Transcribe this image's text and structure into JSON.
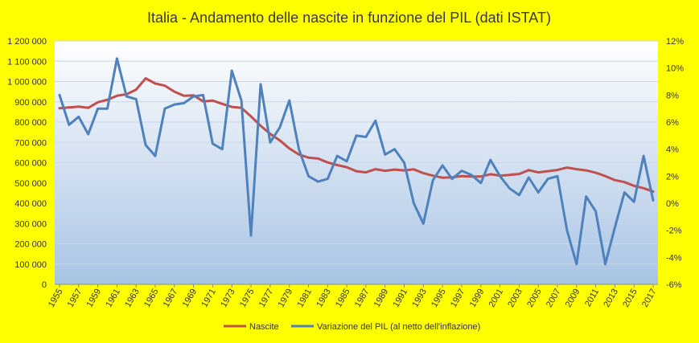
{
  "chart_data": {
    "type": "line",
    "title": "Italia - Andamento delle nascite in funzione del PIL (dati ISTAT)",
    "xlabel": "",
    "ylabel": "",
    "x": [
      1955,
      1956,
      1957,
      1958,
      1959,
      1960,
      1961,
      1962,
      1963,
      1964,
      1965,
      1966,
      1967,
      1968,
      1969,
      1970,
      1971,
      1972,
      1973,
      1974,
      1975,
      1976,
      1977,
      1978,
      1979,
      1980,
      1981,
      1982,
      1983,
      1984,
      1985,
      1986,
      1987,
      1988,
      1989,
      1990,
      1991,
      1992,
      1993,
      1994,
      1995,
      1996,
      1997,
      1998,
      1999,
      2000,
      2001,
      2002,
      2003,
      2004,
      2005,
      2006,
      2007,
      2008,
      2009,
      2010,
      2011,
      2012,
      2013,
      2014,
      2015,
      2016,
      2017
    ],
    "x_tick_labels": [
      "1955",
      "1957",
      "1959",
      "1961",
      "1963",
      "1965",
      "1967",
      "1969",
      "1971",
      "1973",
      "1975",
      "1977",
      "1979",
      "1981",
      "1983",
      "1985",
      "1987",
      "1989",
      "1991",
      "1993",
      "1995",
      "1997",
      "1999",
      "2001",
      "2003",
      "2005",
      "2007",
      "2009",
      "2011",
      "2013",
      "2015",
      "2017"
    ],
    "y_left": {
      "min": 0,
      "max": 1200000,
      "step": 100000,
      "tick_labels": [
        "0",
        "100 000",
        "200 000",
        "300 000",
        "400 000",
        "500 000",
        "600 000",
        "700 000",
        "800 000",
        "900 000",
        "1 000 000",
        "1 100 000",
        "1 200 000"
      ]
    },
    "y_right": {
      "min": -6,
      "max": 12,
      "step": 2,
      "tick_labels": [
        "-6%",
        "-4%",
        "-2%",
        "0%",
        "2%",
        "4%",
        "6%",
        "8%",
        "10%",
        "12%"
      ]
    },
    "grid": true,
    "legend_position": "bottom",
    "series": [
      {
        "name": "Nascite",
        "axis": "left",
        "color": "#c0504d",
        "values": [
          868000,
          872000,
          876000,
          870000,
          898000,
          910000,
          930000,
          937000,
          960000,
          1016000,
          990000,
          980000,
          950000,
          930000,
          932000,
          902000,
          906000,
          890000,
          875000,
          870000,
          828000,
          782000,
          742000,
          710000,
          670000,
          640000,
          625000,
          620000,
          601000,
          588000,
          578000,
          558000,
          552000,
          568000,
          560000,
          566000,
          562000,
          567000,
          548000,
          536000,
          526000,
          528000,
          534000,
          532000,
          532000,
          543000,
          536000,
          540000,
          544000,
          563000,
          552000,
          558000,
          564000,
          576000,
          568000,
          562000,
          550000,
          534000,
          514000,
          504000,
          486000,
          474000,
          458000
        ]
      },
      {
        "name": "Variazione del PIL (al netto dell'inflazione)",
        "axis": "right",
        "color": "#4f81bd",
        "values": [
          8.0,
          5.8,
          6.4,
          5.1,
          7.0,
          7.0,
          10.7,
          7.9,
          7.7,
          4.3,
          3.5,
          7.0,
          7.3,
          7.4,
          7.9,
          8.0,
          4.4,
          4.0,
          9.8,
          7.6,
          -2.4,
          8.8,
          4.5,
          5.6,
          7.6,
          4.0,
          2.0,
          1.6,
          1.8,
          3.5,
          3.1,
          5.0,
          4.9,
          6.1,
          3.6,
          4.0,
          3.0,
          0.0,
          -1.5,
          1.7,
          2.8,
          1.8,
          2.4,
          2.1,
          1.5,
          3.2,
          2.0,
          1.1,
          0.6,
          1.9,
          0.8,
          1.8,
          2.0,
          -2.0,
          -4.5,
          0.5,
          -0.6,
          -4.5,
          -1.8,
          0.8,
          0.1,
          3.5,
          0.2
        ]
      }
    ],
    "legend": [
      "Nascite",
      "Variazione del PIL (al netto dell'inflazione)"
    ]
  },
  "colors": {
    "background": "#ffff00",
    "plot_top": "#ffffff",
    "plot_bottom": "#a8c4e4",
    "grid": "#c9d6e6"
  }
}
